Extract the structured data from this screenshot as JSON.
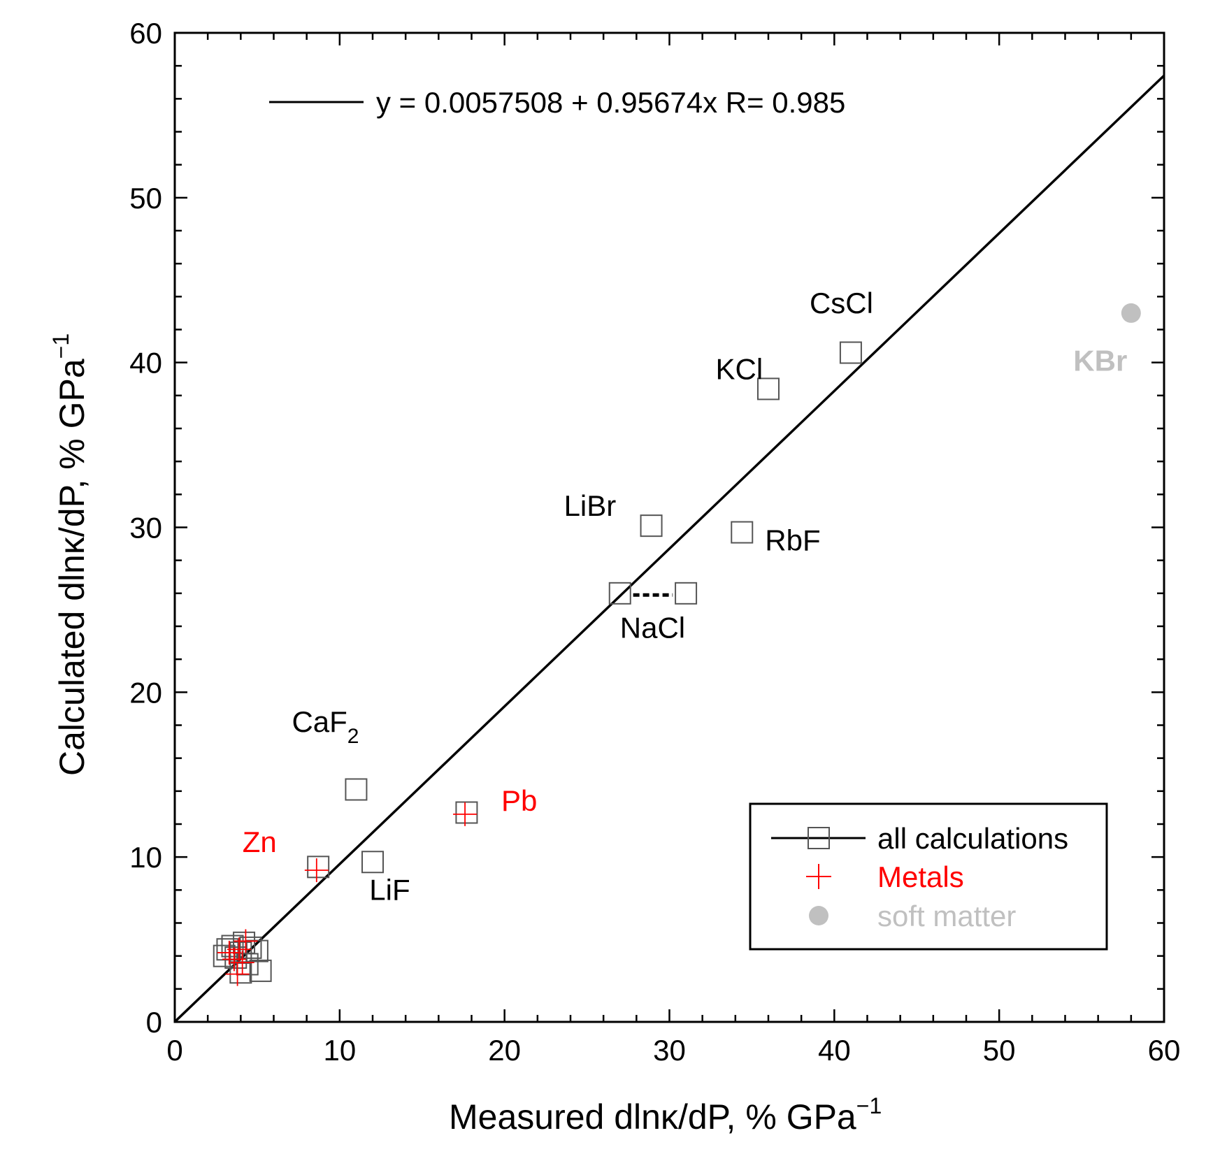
{
  "chart_data": {
    "type": "scatter",
    "title": "",
    "xlabel": "Measured dlnκ/dP, % GPa",
    "ylabel": "Calculated dlnκ/dP, % GPa",
    "unit_exponent": "−1",
    "xlim": [
      0,
      60
    ],
    "ylim": [
      0,
      60
    ],
    "xticks": [
      0,
      10,
      20,
      30,
      40,
      50,
      60
    ],
    "yticks": [
      0,
      10,
      20,
      30,
      40,
      50,
      60
    ],
    "fit": {
      "label": "y = 0.0057508 + 0.95674x   R= 0.985",
      "intercept": 0.0057508,
      "slope": 0.95674,
      "R": 0.985
    },
    "series": [
      {
        "name": "all calculations",
        "marker": "square",
        "color": "#555555",
        "points": [
          {
            "x": 3.0,
            "y": 4.0
          },
          {
            "x": 3.2,
            "y": 4.4
          },
          {
            "x": 3.5,
            "y": 4.6
          },
          {
            "x": 3.7,
            "y": 3.9
          },
          {
            "x": 4.0,
            "y": 4.2
          },
          {
            "x": 4.2,
            "y": 4.8
          },
          {
            "x": 4.4,
            "y": 3.5
          },
          {
            "x": 4.6,
            "y": 4.5
          },
          {
            "x": 5.0,
            "y": 4.3
          },
          {
            "x": 5.2,
            "y": 3.1
          },
          {
            "x": 4.0,
            "y": 3.0
          },
          {
            "x": 8.7,
            "y": 9.4
          },
          {
            "x": 11.0,
            "y": 14.1
          },
          {
            "x": 12.0,
            "y": 9.7
          },
          {
            "x": 17.7,
            "y": 12.7
          },
          {
            "x": 27.0,
            "y": 26.0
          },
          {
            "x": 31.0,
            "y": 26.0
          },
          {
            "x": 28.9,
            "y": 30.1
          },
          {
            "x": 34.4,
            "y": 29.7
          },
          {
            "x": 36.0,
            "y": 38.4
          },
          {
            "x": 41.0,
            "y": 40.6
          }
        ]
      },
      {
        "name": "Metals",
        "marker": "plus",
        "color": "#ff0000",
        "points": [
          {
            "x": 3.3,
            "y": 4.2
          },
          {
            "x": 3.6,
            "y": 3.8
          },
          {
            "x": 3.8,
            "y": 2.9
          },
          {
            "x": 4.1,
            "y": 3.6
          },
          {
            "x": 4.3,
            "y": 4.9
          },
          {
            "x": 3.9,
            "y": 4.4
          },
          {
            "x": 8.6,
            "y": 9.2
          },
          {
            "x": 17.6,
            "y": 12.6
          }
        ]
      },
      {
        "name": "soft matter",
        "marker": "circle",
        "color": "#c0c0c0",
        "points": [
          {
            "x": 58.0,
            "y": 43.0
          }
        ]
      }
    ],
    "dashed_segment": {
      "x": [
        27.8,
        30.2
      ],
      "y": [
        25.9,
        25.9
      ]
    },
    "annotations": [
      {
        "text": "CsCl",
        "color": "#000000",
        "x": 38.5,
        "y": 43.0,
        "bold": false
      },
      {
        "text": "KCl",
        "color": "#000000",
        "x": 32.8,
        "y": 39.0,
        "bold": false
      },
      {
        "text": "KBr",
        "color": "#c0c0c0",
        "x": 54.5,
        "y": 39.5,
        "bold": true
      },
      {
        "text": "LiBr",
        "color": "#000000",
        "x": 23.6,
        "y": 30.7,
        "bold": false
      },
      {
        "text": "RbF",
        "color": "#000000",
        "x": 35.8,
        "y": 28.6,
        "bold": false
      },
      {
        "text": "NaCl",
        "color": "#000000",
        "x": 27.0,
        "y": 23.3,
        "bold": false
      },
      {
        "text": "CaF",
        "color": "#000000",
        "sub": "2",
        "x": 7.1,
        "y": 17.6,
        "bold": false
      },
      {
        "text": "LiF",
        "color": "#000000",
        "x": 11.8,
        "y": 7.4,
        "bold": false
      },
      {
        "text": "Pb",
        "color": "#ff0000",
        "x": 19.8,
        "y": 12.8,
        "bold": false
      },
      {
        "text": "Zn",
        "color": "#ff0000",
        "x": 4.1,
        "y": 10.3,
        "bold": false
      }
    ],
    "legend": {
      "position": "bottom-right",
      "entries": [
        {
          "label": "all calculations",
          "color": "#000000",
          "marker": "line-square"
        },
        {
          "label": "Metals",
          "color": "#ff0000",
          "marker": "plus"
        },
        {
          "label": "soft matter",
          "color": "#c0c0c0",
          "marker": "circle"
        }
      ]
    }
  }
}
